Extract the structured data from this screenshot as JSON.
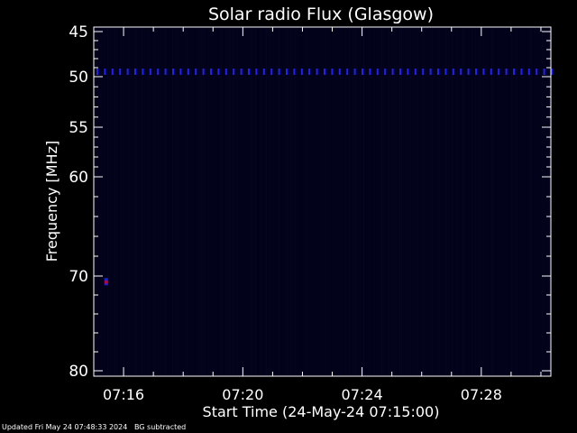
{
  "chart_data": {
    "type": "heatmap",
    "title": "Solar radio Flux (Glasgow)",
    "xlabel": "Start Time (24-May-24 07:15:00)",
    "ylabel": "Frequency [MHz]",
    "x_range": [
      "07:15:00",
      "07:30:20"
    ],
    "y_range": [
      45,
      80
    ],
    "y_inverted": true,
    "x_ticks": [
      "07:16",
      "07:20",
      "07:24",
      "07:28"
    ],
    "y_ticks": [
      45,
      50,
      55,
      60,
      70,
      80
    ],
    "background_color": "#02021a",
    "features": [
      {
        "type": "band",
        "frequency_mhz": 49.5,
        "time_start": "07:15:00",
        "time_end": "07:30:20",
        "color": "#2020ff"
      },
      {
        "type": "spot",
        "frequency_mhz": 70.6,
        "time": "07:15:25",
        "color": "#c00040"
      }
    ],
    "grid": false,
    "legend": "none"
  },
  "footer": {
    "updated": "Updated Fri May 24 07:48:33 2024",
    "note": "BG subtracted"
  }
}
